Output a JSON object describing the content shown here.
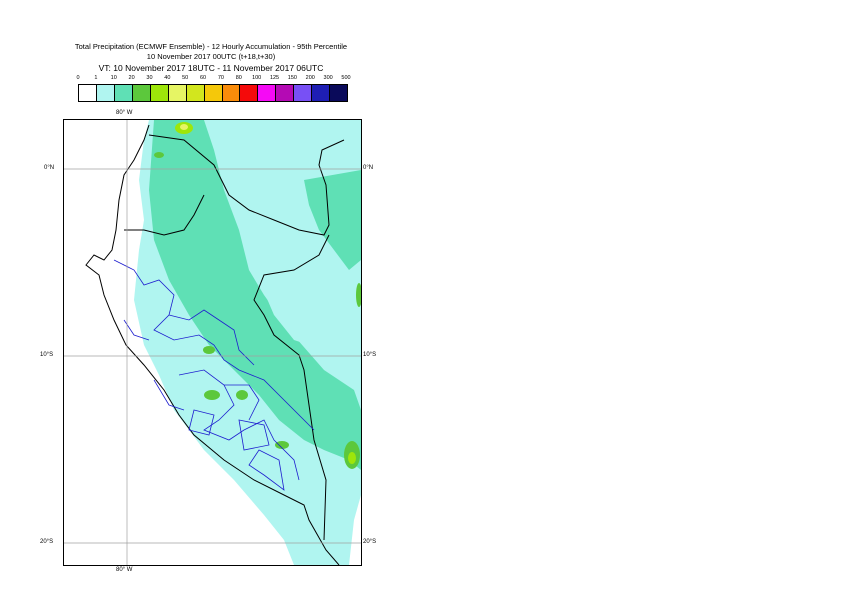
{
  "title": {
    "line1": "Total Precipitation (ECMWF Ensemble) - 12 Hourly Accumulation - 95th Percentile",
    "line2": "10 November 2017 00UTC (t+18,t+30)",
    "line3": "VT: 10 November 2017 18UTC - 11 November 2017 06UTC"
  },
  "legend": {
    "levels": [
      "0",
      "1",
      "10",
      "20",
      "30",
      "40",
      "50",
      "60",
      "70",
      "80",
      "100",
      "125",
      "150",
      "200",
      "300",
      "500"
    ],
    "colors": [
      "#ffffff",
      "#b0f5f0",
      "#5fe0b5",
      "#5cc83c",
      "#9ee60a",
      "#e6f564",
      "#d2e61e",
      "#f5c80a",
      "#fa8c0a",
      "#f50a0a",
      "#f50af5",
      "#b40ab4",
      "#7850f5",
      "#1e1eb4",
      "#0a0a5a"
    ]
  },
  "map": {
    "lon_labels": [
      "80° W",
      "80° W"
    ],
    "lat_labels_left": [
      "0°N",
      "10°S",
      "20°S"
    ],
    "lat_labels_right": [
      "0°N",
      "10°S",
      "20°S"
    ]
  }
}
